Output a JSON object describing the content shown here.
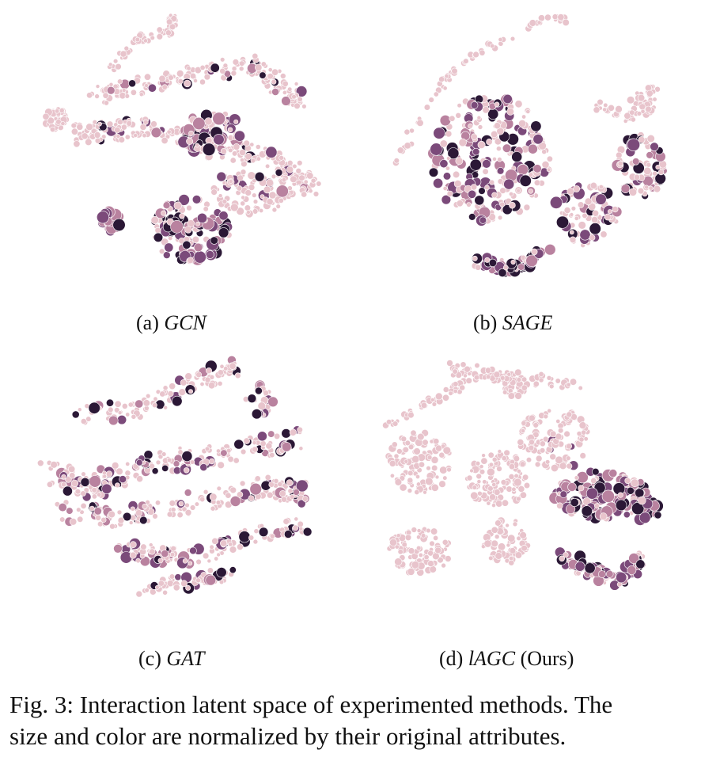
{
  "figure": {
    "number_label": "Fig. 3:",
    "caption_line1": "Interaction latent space of experimented methods. The",
    "caption_line2": "size and color are normalized by their original attributes.",
    "colors": {
      "light": "#e8c4cc",
      "mid": "#b9829f",
      "dark_purple": "#7b4a7a",
      "darkest": "#2b1836",
      "stroke": "#ffffff"
    }
  },
  "panels": [
    {
      "id": "a",
      "label": "(a)",
      "method": "GCN",
      "suffix": ""
    },
    {
      "id": "b",
      "label": "(b)",
      "method": "SAGE",
      "suffix": ""
    },
    {
      "id": "c",
      "label": "(c)",
      "method": "GAT",
      "suffix": ""
    },
    {
      "id": "d",
      "label": "(d)",
      "method": "lAGC",
      "suffix": "(Ours)"
    }
  ]
}
